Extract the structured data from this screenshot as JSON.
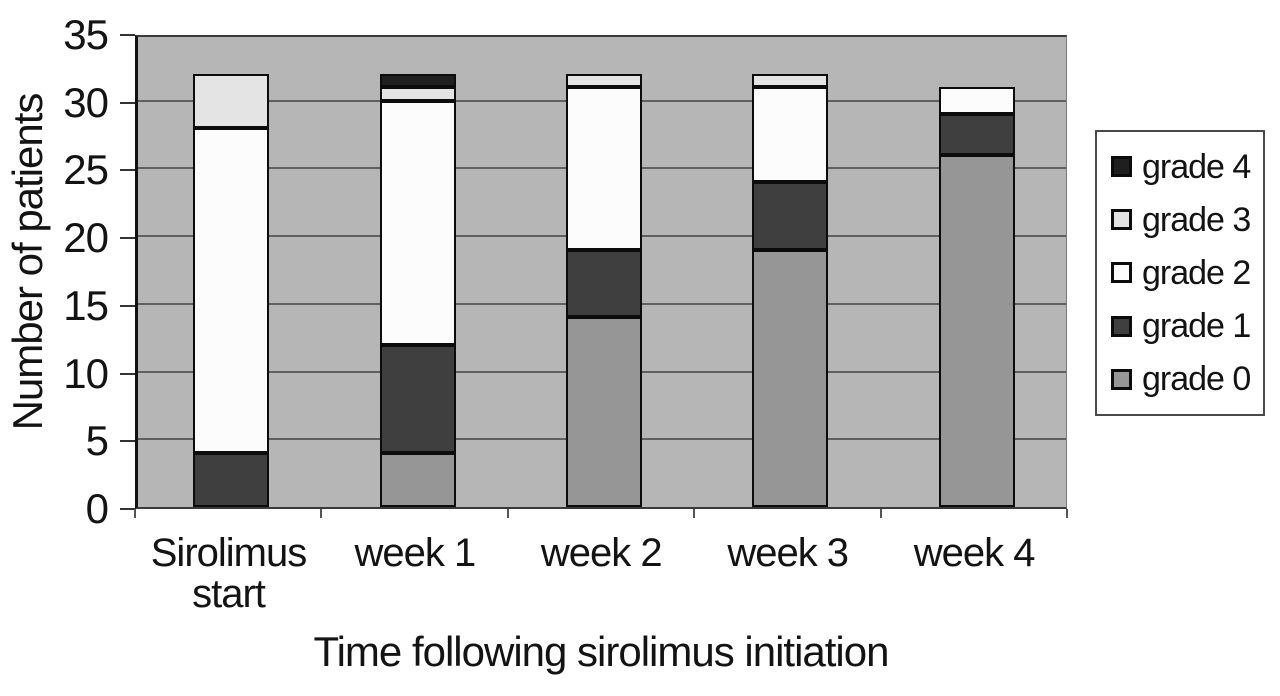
{
  "colors": {
    "plot_background": "#b6b6b6",
    "gridline": "#5f5f5f",
    "bar_border": "#0c0c0c",
    "axis_text": "#131313"
  },
  "chart_data": {
    "type": "bar",
    "stacked": true,
    "title": "",
    "xlabel": "Time following sirolimus initiation",
    "ylabel": "Number of patients",
    "ylim": [
      0,
      35
    ],
    "yticks": [
      0,
      5,
      10,
      15,
      20,
      25,
      30,
      35
    ],
    "grid": true,
    "legend_position": "right",
    "legend_order": [
      "grade 4",
      "grade 3",
      "grade 2",
      "grade 1",
      "grade 0"
    ],
    "categories": [
      "Sirolimus start",
      "week 1",
      "week 2",
      "week 3",
      "week 4"
    ],
    "series": [
      {
        "name": "grade 0",
        "color": "#969696",
        "values": [
          0,
          4,
          14,
          19,
          26
        ]
      },
      {
        "name": "grade 1",
        "color": "#3f3f3f",
        "values": [
          4,
          8,
          5,
          5,
          3
        ]
      },
      {
        "name": "grade 2",
        "color": "#fcfcfc",
        "values": [
          24,
          18,
          12,
          7,
          2
        ]
      },
      {
        "name": "grade 3",
        "color": "#e4e4e4",
        "values": [
          4,
          1,
          1,
          1,
          0
        ]
      },
      {
        "name": "grade 4",
        "color": "#1f1f1f",
        "values": [
          0,
          1,
          0,
          0,
          0
        ]
      }
    ],
    "totals": [
      32,
      32,
      32,
      32,
      31
    ]
  }
}
